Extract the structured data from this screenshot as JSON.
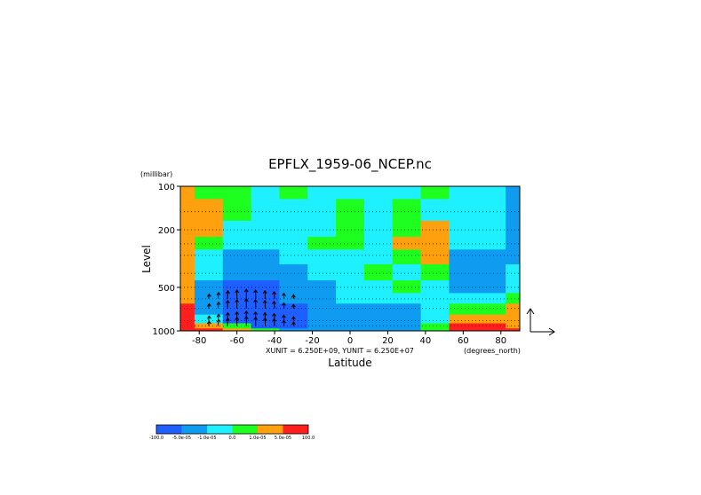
{
  "chart_data": {
    "type": "heatmap",
    "title": "EPFLX_1959-06_NCEP.nc",
    "xlabel": "Latitude",
    "ylabel": "Level",
    "y_unit": "(millibar)",
    "x_unit": "(degrees_north)",
    "xlim": [
      -90,
      90
    ],
    "ylim": [
      1000,
      100
    ],
    "y_scale": "log",
    "x_ticks": [
      -80,
      -60,
      -40,
      -20,
      0,
      20,
      40,
      60,
      80
    ],
    "x_tick_labels": [
      "-80",
      "-60",
      "-40",
      "-20",
      "0",
      "20",
      "40",
      "60",
      "80"
    ],
    "y_ticks": [
      100,
      200,
      500,
      1000
    ],
    "y_tick_labels": [
      "100",
      "200",
      "500",
      "1000"
    ],
    "grid": "dotted horizontal",
    "vector_units": "XUNIT = 6.250E+09, YUNIT = 6.250E+07",
    "colorbar": {
      "placement": "bottom-left",
      "colors": [
        "#1f5fff",
        "#0f9bf0",
        "#1ff0ff",
        "#1fff1f",
        "#ffa00f",
        "#ff1f1f"
      ],
      "tick_labels": [
        "-100.0",
        "-5.0e-05",
        "-1.0e-05",
        "0.0",
        "1.0e-05",
        "5.0e-05",
        "100.0"
      ]
    },
    "lat": [
      -90,
      -75,
      -60,
      -45,
      -30,
      -15,
      0,
      15,
      30,
      45,
      60,
      75,
      90
    ],
    "levels": [
      100,
      150,
      200,
      250,
      300,
      400,
      500,
      600,
      700,
      850,
      925,
      1000
    ],
    "class_index_grid": [
      [
        4,
        3,
        3,
        2,
        3,
        2,
        2,
        2,
        2,
        3,
        2,
        2,
        1
      ],
      [
        4,
        4,
        3,
        2,
        2,
        2,
        3,
        2,
        3,
        2,
        2,
        2,
        1
      ],
      [
        4,
        4,
        2,
        2,
        2,
        2,
        3,
        2,
        3,
        4,
        2,
        2,
        1
      ],
      [
        4,
        3,
        2,
        2,
        2,
        3,
        3,
        2,
        4,
        4,
        2,
        2,
        1
      ],
      [
        4,
        2,
        1,
        1,
        2,
        2,
        2,
        2,
        3,
        4,
        1,
        1,
        1
      ],
      [
        4,
        2,
        1,
        1,
        1,
        2,
        2,
        3,
        2,
        3,
        1,
        1,
        2
      ],
      [
        4,
        1,
        0,
        0,
        1,
        1,
        2,
        2,
        3,
        2,
        1,
        1,
        2
      ],
      [
        4,
        1,
        0,
        0,
        1,
        1,
        2,
        2,
        2,
        2,
        2,
        2,
        3
      ],
      [
        5,
        1,
        0,
        0,
        0,
        1,
        1,
        1,
        1,
        2,
        3,
        3,
        4
      ],
      [
        5,
        2,
        0,
        0,
        0,
        1,
        1,
        1,
        1,
        2,
        4,
        4,
        4
      ],
      [
        5,
        4,
        3,
        0,
        0,
        1,
        1,
        1,
        1,
        3,
        5,
        5,
        4
      ],
      [
        5,
        5,
        4,
        3,
        1,
        1,
        1,
        1,
        1,
        3,
        5,
        5,
        5
      ]
    ],
    "vectors": {
      "lat": [
        -75,
        -70,
        -65,
        -60,
        -55,
        -50,
        -45,
        -40,
        -35,
        -30
      ],
      "u": [
        0.1,
        0.1,
        0.05,
        0.0,
        0.0,
        -0.05,
        -0.05,
        -0.1,
        -0.05,
        0.0
      ],
      "v": [
        0.6,
        0.8,
        1.0,
        1.1,
        1.2,
        1.1,
        1.0,
        0.9,
        0.7,
        0.5
      ]
    }
  }
}
